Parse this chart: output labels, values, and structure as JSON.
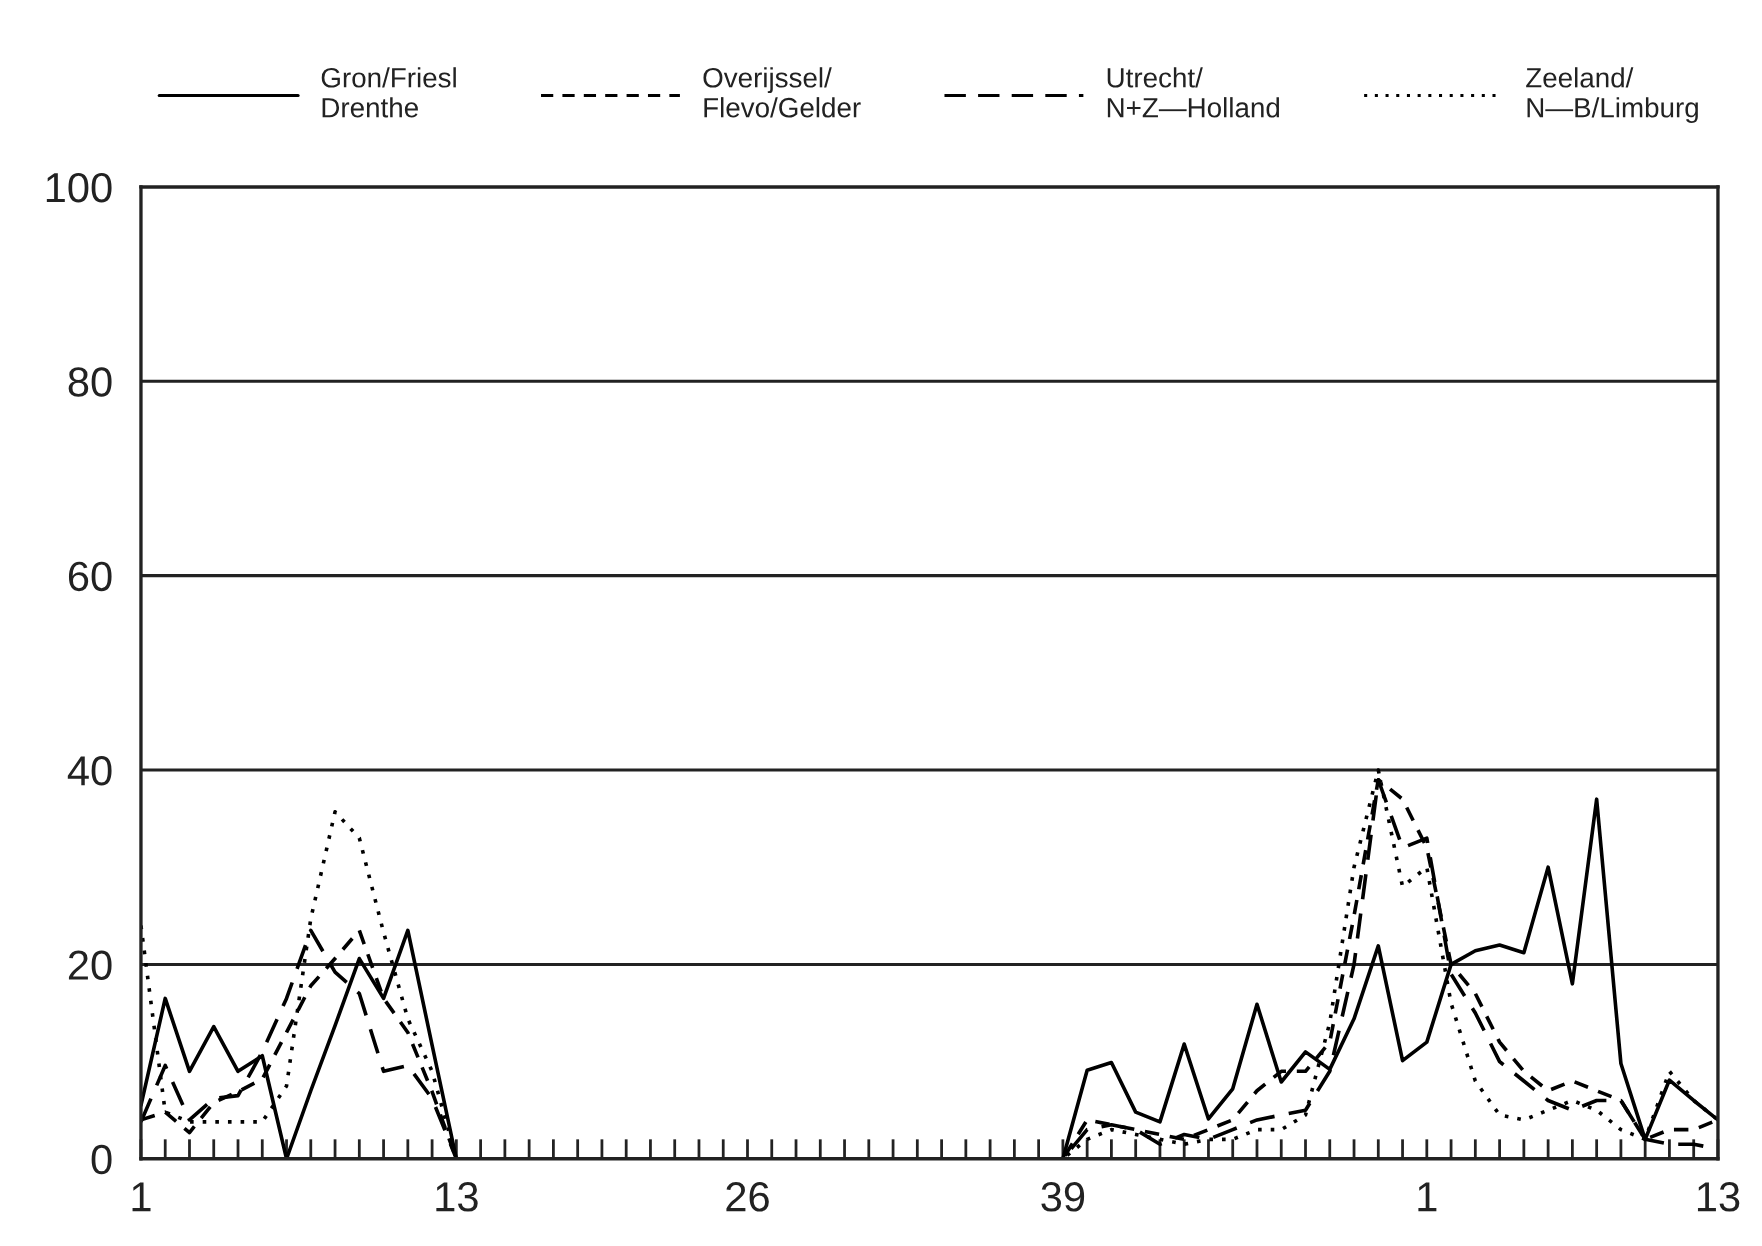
{
  "chart_data": {
    "type": "line",
    "categories": [
      "1",
      null,
      null,
      null,
      null,
      null,
      null,
      null,
      null,
      null,
      null,
      null,
      null,
      "13",
      null,
      null,
      null,
      null,
      null,
      null,
      null,
      null,
      null,
      null,
      null,
      "26",
      null,
      null,
      null,
      null,
      null,
      null,
      null,
      null,
      null,
      null,
      null,
      null,
      "39",
      null,
      null,
      null,
      null,
      null,
      null,
      null,
      null,
      null,
      null,
      null,
      null,
      null,
      null,
      "1",
      null,
      null,
      null,
      null,
      null,
      null,
      null,
      null,
      null,
      null,
      null,
      "13"
    ],
    "series": [
      {
        "name": "Gron/Friesl\nDrenthe",
        "color": "#000000",
        "line_style": "solid",
        "values": [
          5.5,
          16.5,
          9,
          13.6,
          9,
          10.6,
          0,
          7,
          13.7,
          20.6,
          16.5,
          23.5,
          11.7,
          0,
          0,
          0,
          0,
          0,
          0,
          0,
          0,
          0,
          0,
          0,
          0,
          0,
          0,
          0,
          0,
          0,
          0,
          0,
          0,
          0,
          0,
          0,
          0,
          0,
          0,
          9.1,
          9.9,
          4.8,
          3.8,
          11.8,
          4.1,
          7.2,
          15.9,
          7.9,
          11,
          9.2,
          14.4,
          21.9,
          10.1,
          12,
          20,
          21.4,
          22,
          21.2,
          30,
          18,
          37,
          9.8,
          2,
          8.1,
          6,
          4
        ]
      },
      {
        "name": "Overijssel/\nFlevo/Gelder",
        "color": "#000000",
        "line_style": "dashed",
        "values": [
          4,
          4.8,
          2.7,
          5.8,
          6.9,
          8.2,
          13,
          17.8,
          20.6,
          23.5,
          16.5,
          13,
          6.9,
          0,
          0,
          0,
          0,
          0,
          0,
          0,
          0,
          0,
          0,
          0,
          0,
          0,
          0,
          0,
          0,
          0,
          0,
          0,
          0,
          0,
          0,
          0,
          0,
          0,
          0,
          4,
          3.5,
          3,
          2.5,
          2,
          3,
          4,
          7,
          9,
          9,
          12,
          25,
          39,
          37,
          32,
          20,
          17,
          12,
          9,
          7,
          8,
          7,
          6,
          2,
          3,
          3,
          4
        ]
      },
      {
        "name": "Utrecht/\nN+Z—Holland",
        "color": "#000000",
        "line_style": "dashed",
        "values": [
          3.8,
          9.6,
          4,
          6.2,
          6.5,
          11,
          16.5,
          23.5,
          19.2,
          17,
          9,
          9.6,
          6.2,
          0,
          0,
          0,
          0,
          0,
          0,
          0,
          0,
          0,
          0,
          0,
          0,
          0,
          0,
          0,
          0,
          0,
          0,
          0,
          0,
          0,
          0,
          0,
          0,
          0,
          0,
          3,
          3.5,
          3,
          1.5,
          2.5,
          2,
          3,
          4,
          4.5,
          5,
          9,
          20,
          39,
          32,
          33,
          19,
          15,
          10,
          8,
          6,
          5,
          6,
          6,
          2,
          1.5,
          1.5,
          1
        ]
      },
      {
        "name": "Zeeland/\nN—B/Limburg",
        "color": "#000000",
        "line_style": "dotted",
        "values": [
          24,
          4.8,
          3.8,
          3.8,
          3.8,
          3.8,
          7.5,
          24.7,
          35.7,
          33,
          23.3,
          14.4,
          9,
          0,
          0,
          0,
          0,
          0,
          0,
          0,
          0,
          0,
          0,
          0,
          0,
          0,
          0,
          0,
          0,
          0,
          0,
          0,
          0,
          0,
          0,
          0,
          0,
          0,
          0,
          2,
          3,
          2.5,
          2,
          1.5,
          2,
          2,
          3,
          3,
          4.5,
          14,
          30,
          40,
          28,
          30,
          16,
          8,
          4.5,
          4,
          5,
          6,
          5,
          3,
          2,
          9,
          6,
          4
        ]
      }
    ],
    "ylim": [
      0,
      100
    ],
    "yticks": [
      0,
      20,
      40,
      60,
      80,
      100
    ],
    "grid": "y",
    "legend": "top"
  }
}
